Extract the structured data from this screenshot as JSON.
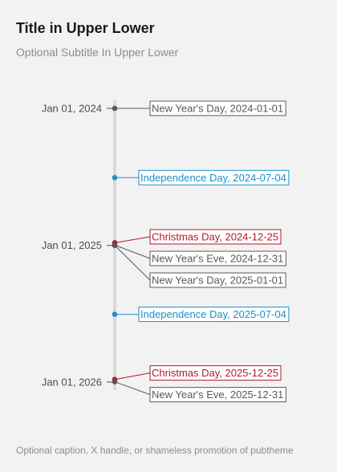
{
  "header": {
    "title": "Title in Upper Lower",
    "subtitle": "Optional Subtitle In Upper Lower"
  },
  "caption": "Optional caption, X handle, or shameless promotion of pubtheme",
  "colors": {
    "background": "#f2f2f2",
    "axis_line": "#d9d9d9",
    "new_year": "#595959",
    "independence": "#1f8fc8",
    "christmas": "#b2182b"
  },
  "chart_data": {
    "type": "timeline",
    "orientation": "vertical",
    "date_range": [
      "2024-01-01",
      "2026-01-01"
    ],
    "ticks": [
      {
        "date": "2024-01-01",
        "label": "Jan 01, 2024"
      },
      {
        "date": "2025-01-01",
        "label": "Jan 01, 2025"
      },
      {
        "date": "2026-01-01",
        "label": "Jan 01, 2026"
      }
    ],
    "events": [
      {
        "date": "2024-01-01",
        "label": "New Year's Day, 2024-01-01",
        "category": "new_year"
      },
      {
        "date": "2024-07-04",
        "label": "Independence Day, 2024-07-04",
        "category": "independence"
      },
      {
        "date": "2024-12-25",
        "label": "Christmas Day, 2024-12-25",
        "category": "christmas"
      },
      {
        "date": "2024-12-31",
        "label": "New Year's Eve, 2024-12-31",
        "category": "new_year"
      },
      {
        "date": "2025-01-01",
        "label": "New Year's Day, 2025-01-01",
        "category": "new_year"
      },
      {
        "date": "2025-07-04",
        "label": "Independence Day, 2025-07-04",
        "category": "independence"
      },
      {
        "date": "2025-12-25",
        "label": "Christmas Day, 2025-12-25",
        "category": "christmas"
      },
      {
        "date": "2025-12-31",
        "label": "New Year's Eve, 2025-12-31",
        "category": "new_year"
      }
    ],
    "grid": false,
    "legend": "none"
  }
}
